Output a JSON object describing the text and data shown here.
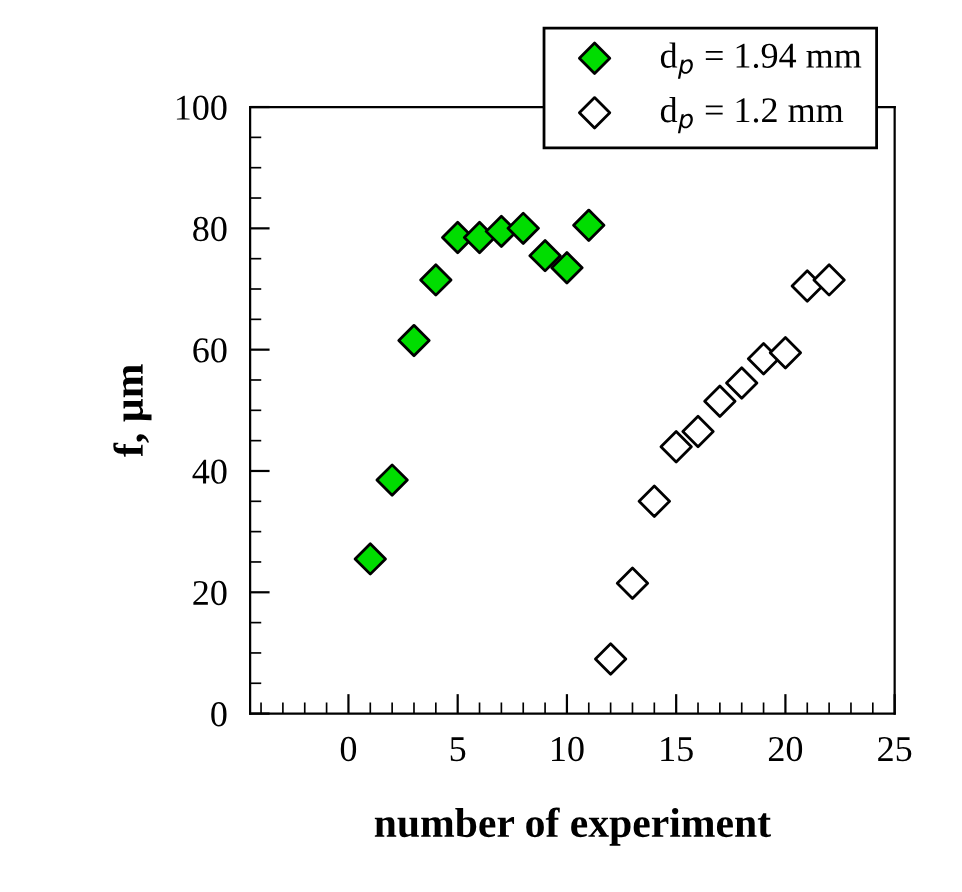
{
  "chart_data": {
    "type": "scatter",
    "xlabel": "number of experiment",
    "ylabel": "f, µm",
    "xlim": [
      -4.5,
      25
    ],
    "xticks": [
      0,
      5,
      10,
      15,
      20,
      25
    ],
    "ylim": [
      0,
      100
    ],
    "yticks": [
      0,
      20,
      40,
      60,
      80,
      100
    ],
    "marker": "diamond",
    "legend": "top right",
    "grid": false,
    "series": [
      {
        "name": "d$_{p}$ = 1.94 mm",
        "color": "#00dd00",
        "x": [
          1,
          2,
          3,
          4,
          5,
          6,
          7,
          8,
          9,
          10,
          11
        ],
        "values": [
          25.5,
          38.5,
          61.5,
          71.5,
          78.5,
          78.5,
          79.5,
          80,
          75.5,
          73.5,
          80.5
        ]
      },
      {
        "name": "d$_{p}$ = 1.2 mm",
        "color": "#ffffff",
        "x": [
          12,
          13,
          14,
          15,
          16,
          17,
          18,
          19,
          20,
          21,
          22
        ],
        "values": [
          9,
          21.5,
          35,
          44,
          46.5,
          51.5,
          54.5,
          58.5,
          59.5,
          70.5,
          71.5
        ]
      }
    ]
  }
}
